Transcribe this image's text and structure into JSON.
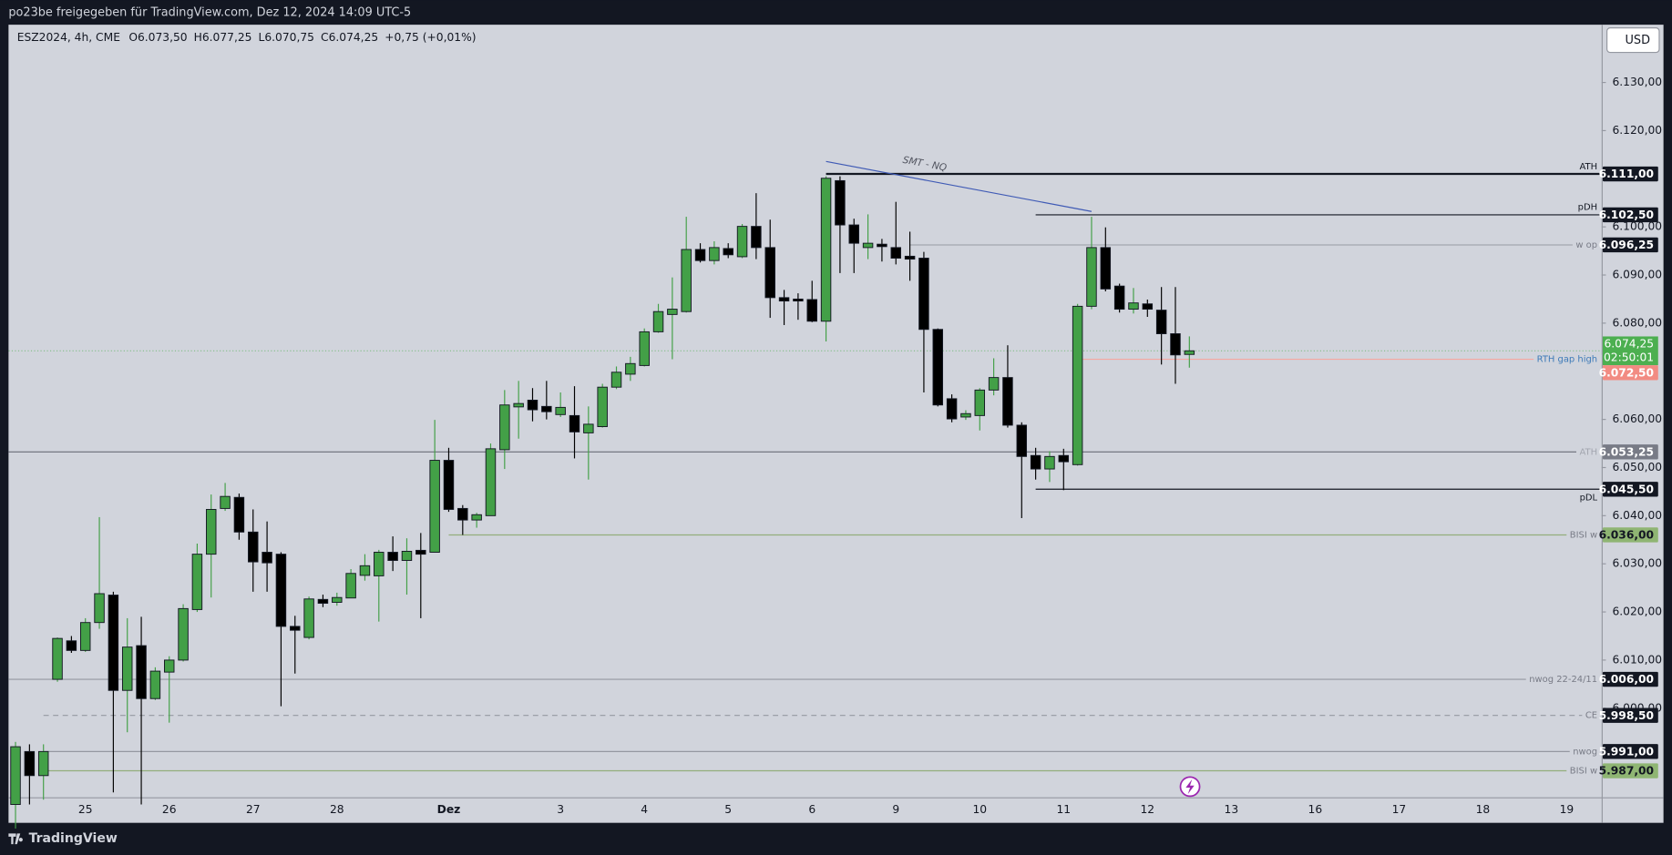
{
  "header": "po23be freigegeben für TradingView.com, Dez 12, 2024 14:09 UTC-5",
  "footer": "TradingView",
  "chart_data": {
    "type": "candlestick",
    "symbol": "ESZ2024, 4h, CME",
    "legend_ohlc": [
      {
        "key": "O",
        "value": 6073.5,
        "label": "6.073,50"
      },
      {
        "key": "H",
        "value": 6077.25,
        "label": "6.077,25"
      },
      {
        "key": "L",
        "value": 6070.75,
        "label": "6.070,75"
      },
      {
        "key": "C",
        "value": 6074.25,
        "label": "6.074,25"
      }
    ],
    "change": "+0,75 (+0,01%)",
    "currency": "USD",
    "background": "#d1d4dc",
    "up_color": "#43a047",
    "down_color": "#000000",
    "categories": [
      null,
      null,
      null,
      null,
      null,
      "25",
      null,
      null,
      null,
      null,
      null,
      "26",
      null,
      null,
      null,
      null,
      null,
      "27",
      null,
      null,
      null,
      null,
      null,
      "28",
      null,
      null,
      null,
      null,
      null,
      null,
      null,
      "Dez",
      null,
      null,
      null,
      null,
      null,
      null,
      null,
      "3",
      null,
      null,
      null,
      null,
      null,
      "4",
      null,
      null,
      null,
      null,
      null,
      "5",
      null,
      null,
      null,
      null,
      null,
      "6",
      null,
      null,
      null,
      null,
      null,
      "9",
      null,
      null,
      null,
      null,
      null,
      "10",
      null,
      null,
      null,
      null,
      null,
      "11",
      null,
      null,
      null,
      null,
      null,
      "12",
      null,
      null,
      null,
      null,
      null,
      "13",
      null,
      null,
      null,
      null,
      null,
      "16",
      null,
      null,
      null,
      null,
      null,
      "17",
      null,
      null,
      null,
      null,
      null,
      "18",
      null,
      null,
      null,
      null,
      null,
      "19",
      null,
      null
    ],
    "open": [
      5980,
      5991,
      5986,
      6006,
      6014,
      6012,
      6017.8,
      6023.5,
      6003.7,
      6013,
      6002,
      6007.5,
      6010,
      6020.5,
      6032,
      6041.5,
      6043.8,
      6036.6,
      6032.4,
      6032,
      6017,
      6014.7,
      6022.6,
      6022,
      6022.9,
      6027.6,
      6027.5,
      6032.4,
      6030.7,
      6032.8,
      6032.4,
      6051.5,
      6041.5,
      6039.1,
      6040,
      6053.7,
      6062.6,
      6064,
      6062.7,
      6061,
      6060.8,
      6057.2,
      6058.5,
      6066.7,
      6069.4,
      6071.2,
      6078.2,
      6081.8,
      6082.4,
      6095.3,
      6093,
      6095.5,
      6093.8,
      6100.1,
      6095.7,
      6085.3,
      6085,
      6084.9,
      6080.4,
      6109.6,
      6100.4,
      6095.7,
      6096.4,
      6095.7,
      6093.9,
      6093.5,
      6078.7,
      6064.3,
      6060.5,
      6060.8,
      6066.1,
      6068.7,
      6058.8,
      6052.5,
      6049.7,
      6052.5,
      6050.6,
      6083.5,
      6095.7,
      6087.7,
      6082.9,
      6084,
      6082.7,
      6077.8,
      6073.5,
      null,
      null,
      null,
      null,
      null,
      null,
      null,
      null,
      null,
      null,
      null,
      null,
      null,
      null,
      null,
      null,
      null,
      null,
      null,
      null,
      null,
      null,
      null,
      null,
      null,
      null,
      null,
      null,
      null
    ],
    "high": [
      5993,
      5992.5,
      5992.5,
      6014.7,
      6015,
      6018.7,
      6039.7,
      6024.2,
      6018.7,
      6019,
      6008.5,
      6010.8,
      6021.6,
      6034.2,
      6044.4,
      6046.8,
      6044.6,
      6041.3,
      6038.8,
      6032.4,
      6019.2,
      6023.2,
      6023.6,
      6024,
      6028.9,
      6032,
      6032.9,
      6035.7,
      6035.3,
      6036.4,
      6059.9,
      6054.1,
      6042.2,
      6040.6,
      6055,
      6066.1,
      6068,
      6066.5,
      6068,
      6065.6,
      6066.9,
      6062.7,
      6067.4,
      6071,
      6073,
      6078.9,
      6084,
      6089.5,
      6102.1,
      6096.6,
      6097,
      6096.6,
      6100.6,
      6107,
      6101.5,
      6086.9,
      6086.2,
      6088.8,
      6110.5,
      6110.5,
      6101.7,
      6102.6,
      6097.5,
      6105.2,
      6099,
      6094.8,
      6078.9,
      6065.2,
      6061.9,
      6066.5,
      6072.7,
      6075.4,
      6059.4,
      6054.1,
      6053.4,
      6053.9,
      6084,
      6102.1,
      6099.9,
      6088.2,
      6087.3,
      6084.9,
      6087.5,
      6087.5,
      6077.25,
      null,
      null,
      null,
      null,
      null,
      null,
      null,
      null,
      null,
      null,
      null,
      null,
      null,
      null,
      null,
      null,
      null,
      null,
      null,
      null,
      null,
      null,
      null,
      null,
      null,
      null,
      null,
      null,
      null
    ],
    "low": [
      5975,
      5980,
      5981,
      6005.5,
      6011.5,
      6011.7,
      6016.5,
      5982.5,
      5995,
      5980,
      6001.7,
      5997,
      6009.7,
      6020,
      6023,
      6041,
      6035,
      6024.2,
      6024.2,
      6000.4,
      6007.2,
      6014.3,
      6021,
      6021.3,
      6022.9,
      6026.5,
      6018,
      6028.5,
      6023.6,
      6018.7,
      6032.4,
      6040.8,
      6036,
      6037.5,
      6040,
      6049.7,
      6056,
      6059.6,
      6060,
      6060.5,
      6051.9,
      6047.5,
      6058.3,
      6066.3,
      6068,
      6071,
      6078,
      6072.5,
      6082.2,
      6092.6,
      6092.2,
      6093.5,
      6093.5,
      6093.3,
      6081.1,
      6079.6,
      6080.7,
      6080.2,
      6076.2,
      6090.4,
      6090.4,
      6093.3,
      6092.8,
      6092.2,
      6088.8,
      6065.6,
      6062.7,
      6059.4,
      6059.9,
      6057.7,
      6065,
      6058.3,
      6039.5,
      6047.5,
      6047,
      6045.3,
      6050.4,
      6082.9,
      6086.6,
      6082.2,
      6082,
      6081.3,
      6071.4,
      6067.4,
      6070.75,
      null,
      null,
      null,
      null,
      null,
      null,
      null,
      null,
      null,
      null,
      null,
      null,
      null,
      null,
      null,
      null,
      null,
      null,
      null,
      null,
      null,
      null,
      null,
      null,
      null,
      null,
      null,
      null,
      null
    ],
    "close": [
      5992,
      5986,
      5991,
      6014.5,
      6012,
      6017.8,
      6023.8,
      6003.7,
      6012.7,
      6002,
      6007.7,
      6010,
      6020.7,
      6032,
      6041.3,
      6044,
      6036.6,
      6030.4,
      6030.2,
      6017,
      6016.2,
      6022.7,
      6021.8,
      6023,
      6028,
      6029.6,
      6032.4,
      6030.7,
      6032.6,
      6032,
      6051.5,
      6041.3,
      6039.1,
      6040.2,
      6053.9,
      6063,
      6063.3,
      6062,
      6061.6,
      6062.5,
      6057.4,
      6059,
      6066.7,
      6069.8,
      6071.6,
      6078.2,
      6082.4,
      6082.9,
      6095.3,
      6093,
      6095.7,
      6094.2,
      6100.1,
      6095.7,
      6085.3,
      6084.6,
      6084.6,
      6080.4,
      6110.1,
      6100.4,
      6096.6,
      6096.6,
      6095.9,
      6093.5,
      6093.3,
      6078.7,
      6063,
      6060.1,
      6061.2,
      6066.1,
      6068.7,
      6058.8,
      6052.3,
      6049.7,
      6052.3,
      6051.2,
      6083.5,
      6095.7,
      6087.1,
      6082.9,
      6084.2,
      6082.9,
      6077.8,
      6073.4,
      6074.25,
      null,
      null,
      null,
      null,
      null,
      null,
      null,
      null,
      null,
      null,
      null,
      null,
      null,
      null,
      null,
      null,
      null,
      null,
      null,
      null,
      null,
      null,
      null,
      null,
      null,
      null,
      null,
      null,
      null
    ],
    "ylim": [
      5981.5,
      6142
    ],
    "yticks": [
      {
        "value": 6000,
        "label": "6.000,00"
      },
      {
        "value": 6010,
        "label": "6.010,00"
      },
      {
        "value": 6020,
        "label": "6.020,00"
      },
      {
        "value": 6030,
        "label": "6.030,00"
      },
      {
        "value": 6040,
        "label": "6.040,00"
      },
      {
        "value": 6050,
        "label": "6.050,00"
      },
      {
        "value": 6060,
        "label": "6.060,00"
      },
      {
        "value": 6080,
        "label": "6.080,00"
      },
      {
        "value": 6090,
        "label": "6.090,00"
      },
      {
        "value": 6100,
        "label": "6.100,00"
      },
      {
        "value": 6120,
        "label": "6.120,00"
      },
      {
        "value": 6130,
        "label": "6.130,00"
      }
    ],
    "grid": false,
    "last_price": {
      "value": 6074.25,
      "label": "6.074,25",
      "countdown": "02:50:01",
      "color": "#4caf50"
    },
    "levels": [
      {
        "name": "ATH",
        "value": 6111,
        "value_label": "6.111,00",
        "from": 58,
        "color": "#131722",
        "line_width": 2,
        "label_side": "above",
        "label_color": "#131722",
        "box": "#131722",
        "box_text": "#ffffff"
      },
      {
        "name": "pDH",
        "value": 6102.5,
        "value_label": "6.102,50",
        "from": 73,
        "color": "#131722",
        "line_width": 1,
        "label_side": "above",
        "label_color": "#131722",
        "box": "#131722",
        "box_text": "#ffffff"
      },
      {
        "name": "w op",
        "value": 6096.25,
        "value_label": "6.096,25",
        "from": 64,
        "color": "#a3a6af",
        "line_width": 1,
        "label_side": "on",
        "label_color": "#787b86",
        "box": "#131722",
        "box_text": "#ffffff"
      },
      {
        "name": "RTH gap high",
        "value": 6072.5,
        "value_label": "6.072,50",
        "from": 76,
        "color": "#f4a7a1",
        "line_width": 1,
        "label_side": "on",
        "label_color": "#3d7ab8",
        "box": "#f28b82",
        "box_text": "#ffffff"
      },
      {
        "name": "ATH",
        "value": 6053.25,
        "value_label": "6.053,25",
        "color": "#6a6d78",
        "line_width": 1,
        "label_side": "on",
        "label_color": "#a3a6af",
        "box": "#787b86",
        "box_text": "#ffffff"
      },
      {
        "name": "pDL",
        "value": 6045.5,
        "value_label": "6.045,50",
        "from": 73,
        "color": "#131722",
        "line_width": 1,
        "label_side": "below",
        "label_color": "#131722",
        "box": "#131722",
        "box_text": "#ffffff"
      },
      {
        "name": "BISI w",
        "value": 6036,
        "value_label": "6.036,00",
        "from": 31,
        "color": "#93ad7b",
        "line_width": 1,
        "label_side": "on",
        "label_color": "#787b86",
        "box": "#8fb573",
        "box_text": "#131722"
      },
      {
        "name": "nwog 22-24/11",
        "value": 6006,
        "value_label": "6.006,00",
        "color": "#9598a1",
        "line_width": 1,
        "label_side": "on",
        "label_color": "#787b86",
        "box": "#131722",
        "box_text": "#ffffff"
      },
      {
        "name": "CE",
        "value": 5998.5,
        "value_label": "5.998,50",
        "from": 2,
        "color": "#9598a1",
        "line_width": 1,
        "dashed": true,
        "label_side": "on",
        "label_color": "#787b86",
        "box": "#131722",
        "box_text": "#ffffff"
      },
      {
        "name": "nwog",
        "value": 5991,
        "value_label": "5.991,00",
        "from": 2,
        "color": "#9598a1",
        "line_width": 1,
        "label_side": "on",
        "label_color": "#787b86",
        "box": "#131722",
        "box_text": "#ffffff"
      },
      {
        "name": "BISI w",
        "value": 5987,
        "value_label": "5.987,00",
        "from": 2,
        "color": "#93ad7b",
        "line_width": 1,
        "label_side": "on",
        "label_color": "#787b86",
        "box": "#8fb573",
        "box_text": "#131722"
      }
    ],
    "trendline": {
      "label": "SMT - NQ",
      "start": {
        "index": 58,
        "price": 6113.6
      },
      "end": {
        "index": 77,
        "price": 6103.2
      },
      "color": "#3f5ab5"
    }
  }
}
